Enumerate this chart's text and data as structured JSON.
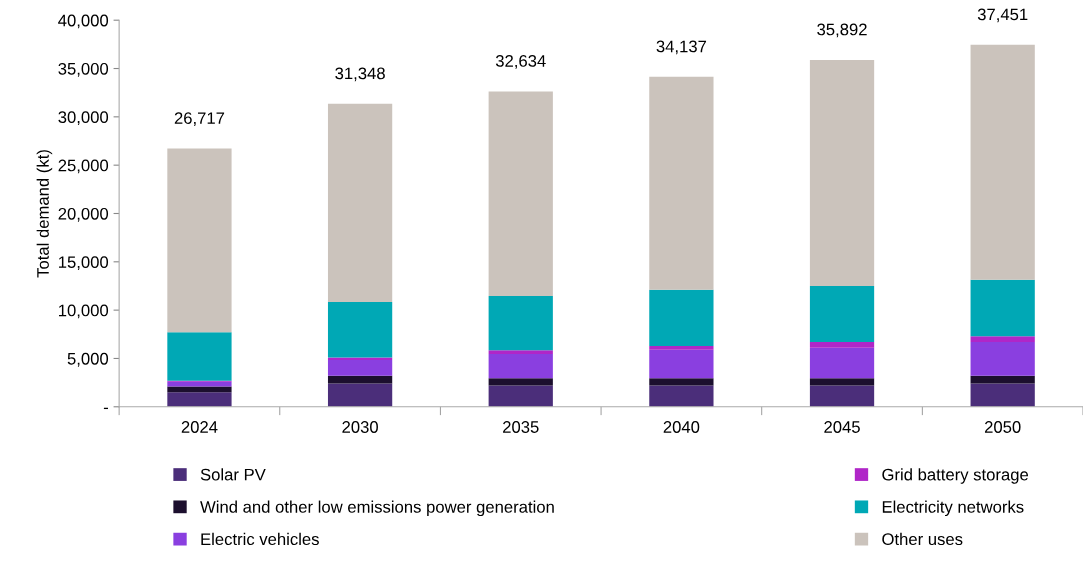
{
  "chart_data": {
    "type": "bar",
    "stacked": true,
    "ylabel": "Total demand (kt)",
    "categories": [
      "2024",
      "2030",
      "2035",
      "2040",
      "2045",
      "2050"
    ],
    "series": [
      {
        "name": "Solar PV",
        "color": "#4b2e7a",
        "values": [
          1500,
          2400,
          2200,
          2200,
          2200,
          2400
        ]
      },
      {
        "name": "Wind and other low emissions power generation",
        "color": "#1c0f2e",
        "values": [
          600,
          800,
          750,
          750,
          750,
          800
        ]
      },
      {
        "name": "Electric vehicles",
        "color": "#8a3fe0",
        "values": [
          500,
          1650,
          2500,
          2950,
          3150,
          3500
        ]
      },
      {
        "name": "Grid battery storage",
        "color": "#b026c8",
        "values": [
          100,
          250,
          400,
          400,
          600,
          600
        ]
      },
      {
        "name": "Electricity networks",
        "color": "#00a8b5",
        "values": [
          5000,
          5750,
          5600,
          5800,
          5800,
          5850
        ]
      },
      {
        "name": "Other uses",
        "color": "#cbc3bc",
        "values": [
          19017,
          20498,
          21184,
          22037,
          23392,
          24301
        ]
      }
    ],
    "totals": [
      "26,717",
      "31,348",
      "32,634",
      "34,137",
      "35,892",
      "37,451"
    ],
    "ylim": [
      0,
      40000
    ],
    "yticks": [
      {
        "value": 0,
        "label": "-"
      },
      {
        "value": 5000,
        "label": "5,000"
      },
      {
        "value": 10000,
        "label": "10,000"
      },
      {
        "value": 15000,
        "label": "15,000"
      },
      {
        "value": 20000,
        "label": "20,000"
      },
      {
        "value": 25000,
        "label": "25,000"
      },
      {
        "value": 30000,
        "label": "30,000"
      },
      {
        "value": 35000,
        "label": "35,000"
      },
      {
        "value": 40000,
        "label": "40,000"
      }
    ],
    "grid": false,
    "legend": "bottom"
  }
}
